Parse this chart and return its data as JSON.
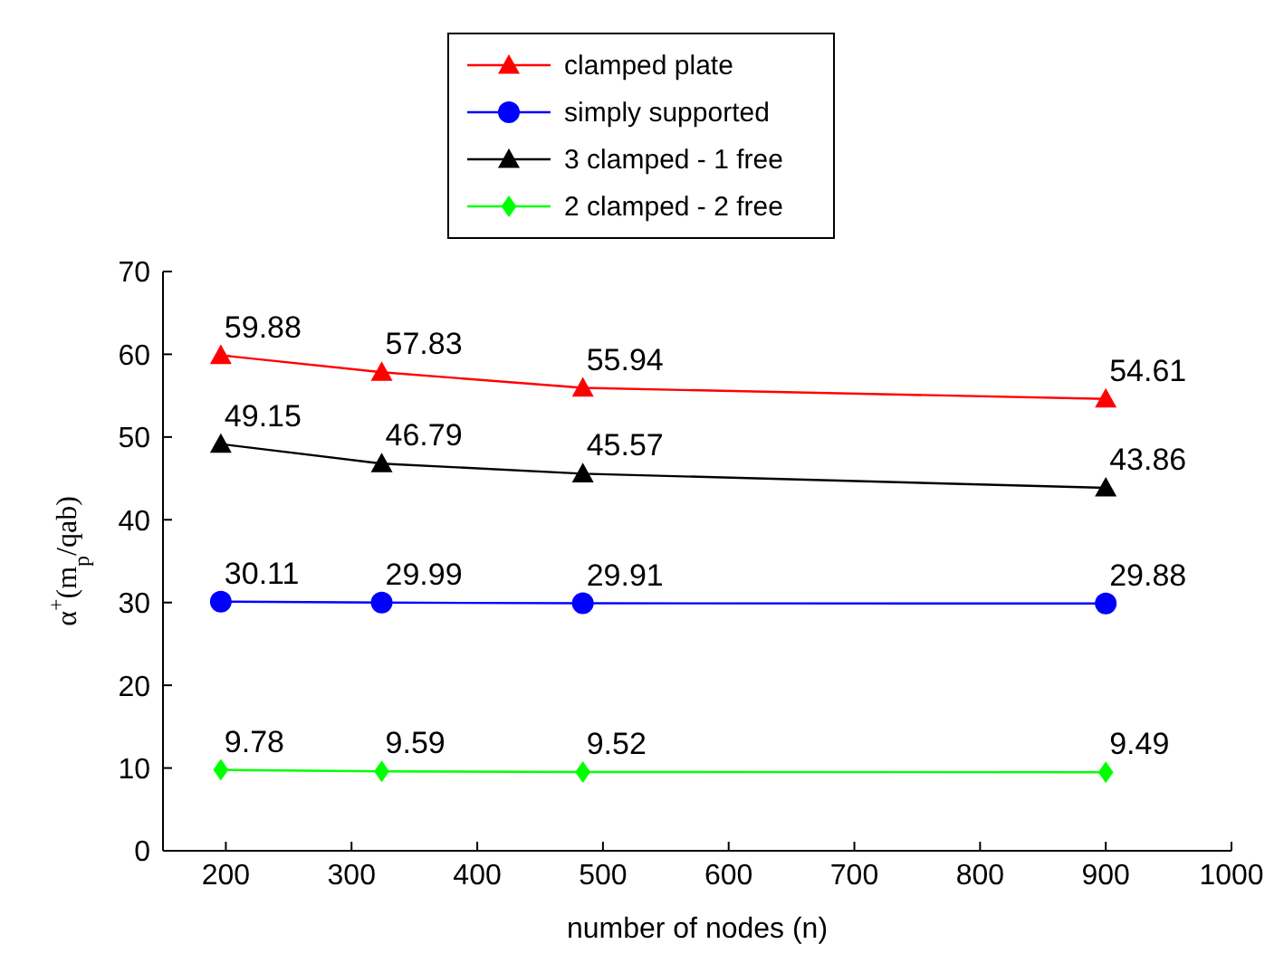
{
  "chart_data": {
    "type": "line",
    "xlabel": "number of nodes (n)",
    "ylabel": "α$^{+}$(m$_{p}$/qab)",
    "x": [
      196,
      324,
      484,
      900
    ],
    "series": [
      {
        "name": "clamped plate",
        "color": "#ff0000",
        "marker": "triangle",
        "values": [
          59.88,
          57.83,
          55.94,
          54.61
        ]
      },
      {
        "name": "simply supported",
        "color": "#0000ff",
        "marker": "circle",
        "values": [
          30.11,
          29.99,
          29.91,
          29.88
        ]
      },
      {
        "name": "3 clamped - 1 free",
        "color": "#000000",
        "marker": "triangle",
        "values": [
          49.15,
          46.79,
          45.57,
          43.86
        ]
      },
      {
        "name": "2 clamped - 2 free",
        "color": "#00ff00",
        "marker": "diamond",
        "values": [
          9.78,
          9.59,
          9.52,
          9.49
        ]
      }
    ],
    "xlim": [
      150,
      1000
    ],
    "xticks": [
      200,
      300,
      400,
      500,
      600,
      700,
      800,
      900,
      1000
    ],
    "ylim": [
      0,
      70
    ],
    "yticks": [
      0,
      10,
      20,
      30,
      40,
      50,
      60,
      70
    ],
    "data_labels": true,
    "legend": "top",
    "grid": false
  }
}
